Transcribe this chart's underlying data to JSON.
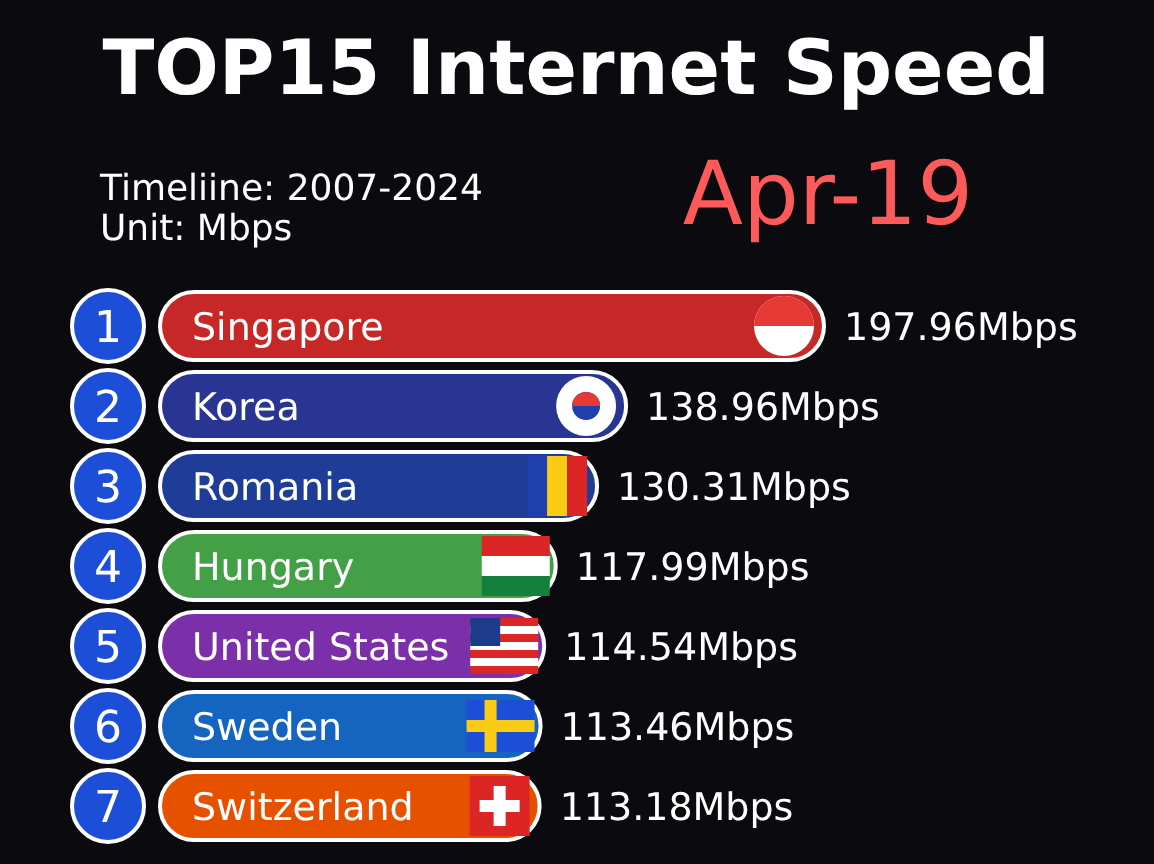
{
  "chart_data": {
    "type": "bar",
    "orientation": "horizontal",
    "title": "TOP15 Internet Speed",
    "subtitle": "Apr-19",
    "annotations": [
      "Timeliine: 2007-2024",
      "Unit: Mbps",
      "1",
      "2",
      "3",
      "4",
      "5",
      "6",
      "7"
    ],
    "categories": [
      "Singapore",
      "Korea",
      "Romania",
      "Hungary",
      "United States",
      "Sweden",
      "Switzerland"
    ],
    "values": [
      197.96,
      138.96,
      130.31,
      117.99,
      114.54,
      113.46,
      113.18
    ],
    "value_labels": [
      "197.96Mbps",
      "138.96Mbps",
      "130.31Mbps",
      "117.99Mbps",
      "114.54Mbps",
      "113.46Mbps",
      "113.18Mbps"
    ],
    "colors": [
      "#c62828",
      "#283593",
      "#1f3c96",
      "#43a047",
      "#7b2fa8",
      "#1565c0",
      "#e65100"
    ]
  }
}
